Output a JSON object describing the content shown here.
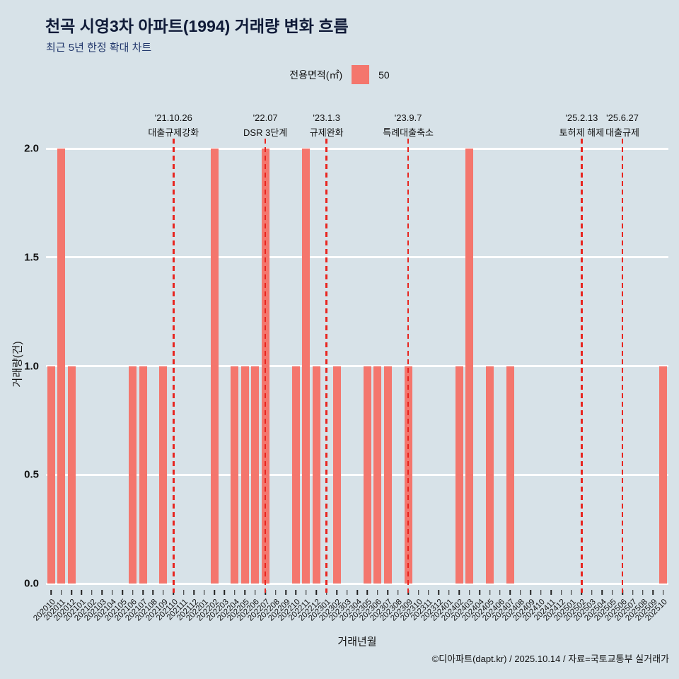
{
  "header": {
    "title": "천곡 시영3차 아파트(1994) 거래량 변화 흐름",
    "subtitle": "최근 5년 한정 확대 차트"
  },
  "legend": {
    "label": "전용면적(㎡)",
    "value": "50"
  },
  "chart_data": {
    "type": "bar",
    "title": "천곡 시영3차 아파트(1994) 거래량 변화 흐름",
    "xlabel": "거래년월",
    "ylabel": "거래량(건)",
    "ylim": [
      0,
      2
    ],
    "yticks": [
      0,
      0.5,
      1,
      1.5,
      2
    ],
    "grid": true,
    "legend_position": "top-center",
    "series_name": "50",
    "categories": [
      "202010",
      "202011",
      "202012",
      "202101",
      "202102",
      "202103",
      "202104",
      "202105",
      "202106",
      "202107",
      "202108",
      "202109",
      "202110",
      "202111",
      "202112",
      "202201",
      "202202",
      "202203",
      "202204",
      "202205",
      "202206",
      "202207",
      "202208",
      "202209",
      "202210",
      "202211",
      "202212",
      "202301",
      "202302",
      "202303",
      "202304",
      "202305",
      "202306",
      "202307",
      "202308",
      "202309",
      "202310",
      "202311",
      "202312",
      "202401",
      "202402",
      "202403",
      "202404",
      "202405",
      "202406",
      "202407",
      "202408",
      "202409",
      "202410",
      "202411",
      "202412",
      "202501",
      "202502",
      "202503",
      "202504",
      "202505",
      "202506",
      "202507",
      "202508",
      "202509",
      "202510"
    ],
    "values": [
      1,
      2,
      1,
      0,
      0,
      0,
      0,
      0,
      1,
      1,
      0,
      1,
      0,
      0,
      0,
      0,
      2,
      0,
      1,
      1,
      1,
      2,
      0,
      0,
      1,
      2,
      1,
      0,
      1,
      0,
      0,
      1,
      1,
      1,
      0,
      1,
      0,
      0,
      0,
      0,
      1,
      2,
      0,
      1,
      0,
      1,
      0,
      0,
      0,
      0,
      0,
      0,
      0,
      0,
      0,
      0,
      0,
      0,
      0,
      0,
      1
    ],
    "annotations": [
      {
        "x": "202110",
        "date": "'21.10.26",
        "label": "대출규제강화"
      },
      {
        "x": "202207",
        "date": "'22.07",
        "label": "DSR 3단계"
      },
      {
        "x": "202301",
        "date": "'23.1.3",
        "label": "규제완화"
      },
      {
        "x": "202309",
        "date": "'23.9.7",
        "label": "특례대출축소"
      },
      {
        "x": "202502",
        "date": "'25.2.13",
        "label": "토허제 해제"
      },
      {
        "x": "202506",
        "date": "'25.6.27",
        "label": "대출규제"
      }
    ]
  },
  "footer": {
    "credit": "©디아파트(dapt.kr) / 2025.10.14 / 자료=국토교통부 실거래가"
  },
  "colors": {
    "background": "#d7e2e8",
    "bar": "#f4766d",
    "event_line": "#e8251f",
    "grid": "#ffffff",
    "title": "#101b38",
    "subtitle": "#20366b"
  }
}
